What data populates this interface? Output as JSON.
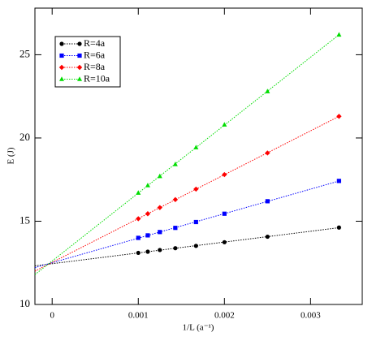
{
  "chart_data": {
    "type": "scatter",
    "xlabel": "1/L (a⁻¹)",
    "ylabel": "E (J)",
    "x": [
      0.001,
      0.00111,
      0.00125,
      0.00143,
      0.00167,
      0.002,
      0.0025,
      0.00333
    ],
    "series": [
      {
        "name": "R=4a",
        "color": "#000000",
        "marker": "circle",
        "values": [
          13.1,
          13.17,
          13.27,
          13.38,
          13.52,
          13.74,
          14.07,
          14.62
        ]
      },
      {
        "name": "R=6a",
        "color": "#0000ff",
        "marker": "square",
        "values": [
          14.0,
          14.15,
          14.35,
          14.6,
          14.95,
          15.45,
          16.2,
          17.42
        ]
      },
      {
        "name": "R=8a",
        "color": "#ff0000",
        "marker": "diamond",
        "values": [
          15.15,
          15.45,
          15.82,
          16.3,
          16.93,
          17.8,
          19.1,
          21.3
        ]
      },
      {
        "name": "R=10a",
        "color": "#00dd00",
        "marker": "triangle",
        "values": [
          16.7,
          17.15,
          17.7,
          18.42,
          19.43,
          20.8,
          22.8,
          26.2
        ]
      }
    ],
    "fit_lines": true,
    "xlim": [
      -0.0002,
      0.0036
    ],
    "ylim": [
      10,
      27.8
    ],
    "xticks": [
      0,
      0.001,
      0.002,
      0.003
    ],
    "yticks": [
      10,
      15,
      20,
      25
    ],
    "legend": "upper left"
  }
}
